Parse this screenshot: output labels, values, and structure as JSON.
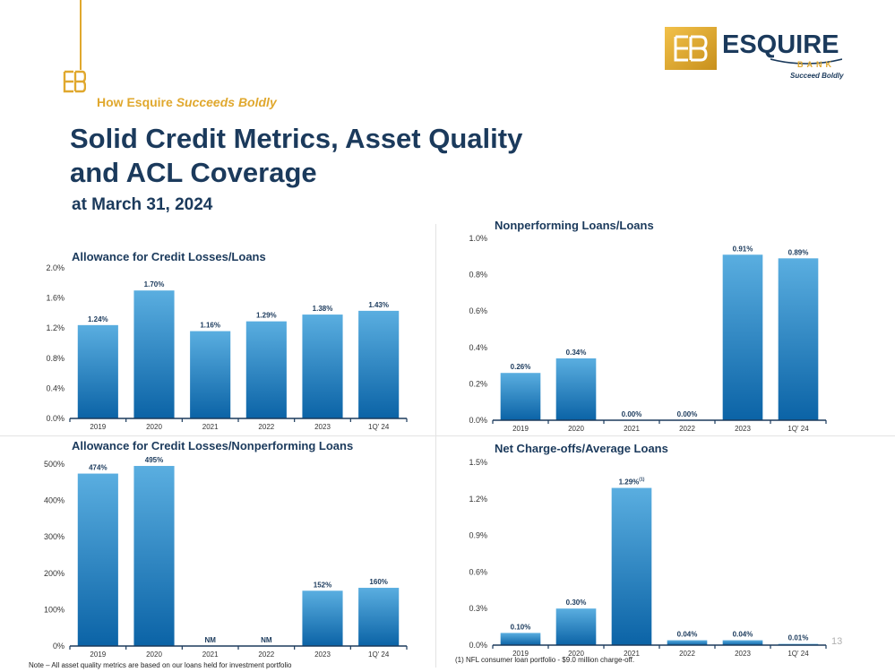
{
  "header": {
    "tagline_bold": "How Esquire",
    "tagline_italic": "Succeeds Boldly",
    "title_line1": "Solid Credit Metrics, Asset Quality",
    "title_line2": "and ACL Coverage",
    "subtitle": "at March 31, 2024"
  },
  "logo": {
    "name": "ESQUIRE",
    "bank": "BANK",
    "tagline": "Succeed Boldly"
  },
  "colors": {
    "navy": "#1b3a5c",
    "gold": "#e0a82e",
    "bar_top": "#5aaee0",
    "bar_bottom": "#0b63a6"
  },
  "footer": {
    "note": "Note – All asset quality metrics are based on our loans held for investment portfolio",
    "footnote": "(1) NFL consumer loan portfolio - $9.0 million charge-off.",
    "page_number": "13"
  },
  "chart_data": [
    {
      "type": "bar",
      "title": "Allowance for Credit Losses/Loans",
      "categories": [
        "2019",
        "2020",
        "2021",
        "2022",
        "2023",
        "1Q' 24"
      ],
      "values": [
        1.24,
        1.7,
        1.16,
        1.29,
        1.38,
        1.43
      ],
      "data_labels": [
        "1.24%",
        "1.70%",
        "1.16%",
        "1.29%",
        "1.38%",
        "1.43%"
      ],
      "ylim": [
        0,
        2.0
      ],
      "yticks": [
        0,
        0.4,
        0.8,
        1.2,
        1.6,
        2.0
      ],
      "ytick_labels": [
        "0.0%",
        "0.4%",
        "0.8%",
        "1.2%",
        "1.6%",
        "2.0%"
      ],
      "grid": false
    },
    {
      "type": "bar",
      "title": "Nonperforming Loans/Loans",
      "categories": [
        "2019",
        "2020",
        "2021",
        "2022",
        "2023",
        "1Q' 24"
      ],
      "values": [
        0.26,
        0.34,
        0.0,
        0.0,
        0.91,
        0.89
      ],
      "data_labels": [
        "0.26%",
        "0.34%",
        "0.00%",
        "0.00%",
        "0.91%",
        "0.89%"
      ],
      "ylim": [
        0,
        1.0
      ],
      "yticks": [
        0,
        0.2,
        0.4,
        0.6,
        0.8,
        1.0
      ],
      "ytick_labels": [
        "0.0%",
        "0.2%",
        "0.4%",
        "0.6%",
        "0.8%",
        "1.0%"
      ],
      "grid": false
    },
    {
      "type": "bar",
      "title": "Allowance for Credit Losses/Nonperforming Loans",
      "categories": [
        "2019",
        "2020",
        "2021",
        "2022",
        "2023",
        "1Q' 24"
      ],
      "values": [
        474,
        495,
        0,
        0,
        152,
        160
      ],
      "data_labels": [
        "474%",
        "495%",
        "NM",
        "NM",
        "152%",
        "160%"
      ],
      "ylim": [
        0,
        500
      ],
      "yticks": [
        0,
        100,
        200,
        300,
        400,
        500
      ],
      "ytick_labels": [
        "0%",
        "100%",
        "200%",
        "300%",
        "400%",
        "500%"
      ],
      "grid": false
    },
    {
      "type": "bar",
      "title": "Net Charge-offs/Average Loans",
      "categories": [
        "2019",
        "2020",
        "2021",
        "2022",
        "2023",
        "1Q' 24"
      ],
      "values": [
        0.1,
        0.3,
        1.29,
        0.04,
        0.04,
        0.01
      ],
      "data_labels": [
        "0.10%",
        "0.30%",
        "1.29%",
        "0.04%",
        "0.04%",
        "0.01%"
      ],
      "data_label_superscripts": [
        "",
        "",
        "(1)",
        "",
        "",
        ""
      ],
      "ylim": [
        0,
        1.5
      ],
      "yticks": [
        0,
        0.3,
        0.6,
        0.9,
        1.2,
        1.5
      ],
      "ytick_labels": [
        "0.0%",
        "0.3%",
        "0.6%",
        "0.9%",
        "1.2%",
        "1.5%"
      ],
      "grid": false
    }
  ]
}
